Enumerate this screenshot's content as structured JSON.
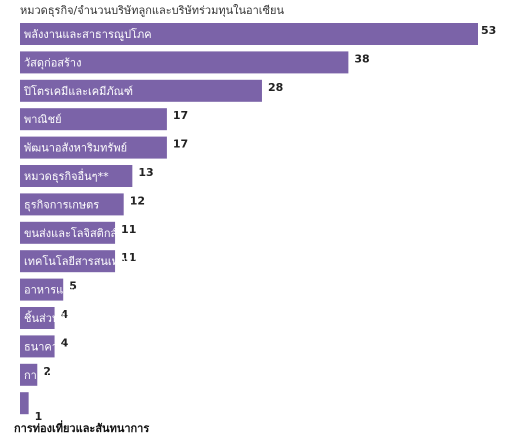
{
  "header": {
    "text": "หมวดธุรกิจ/จำนวนบริษัทลูกและบริษัทร่วมทุนในอาเซียน"
  },
  "colors": {
    "bar": "#7b63a8"
  },
  "chart_data": {
    "type": "bar",
    "orientation": "horizontal",
    "title": "",
    "categories": [
      "พลังงานและสาธารณูปโภค",
      "วัสดุก่อสร้าง",
      "ปิโตรเคมีและเคมีภัณฑ์",
      "พาณิชย์",
      "พัฒนาอสังหาริมทรัพย์",
      "หมวดธุรกิจอื่นๆ**",
      "ธุรกิจการเกษตร",
      "ขนส่งและโลจิสติกส์",
      "เทคโนโลยีสารสนเทศและการสื่อสาร",
      "อาหารและเครื่องดื่ม",
      "ชิ้นส่วนอิเล็กฯ",
      "ธนาคาร",
      "การแพทย์",
      "การท่องเที่ยวและสันทนาการ"
    ],
    "values": [
      53,
      38,
      28,
      17,
      17,
      13,
      12,
      11,
      11,
      5,
      4,
      4,
      2,
      1
    ],
    "xlim": [
      0,
      53
    ],
    "grid": false,
    "legend": "none"
  }
}
